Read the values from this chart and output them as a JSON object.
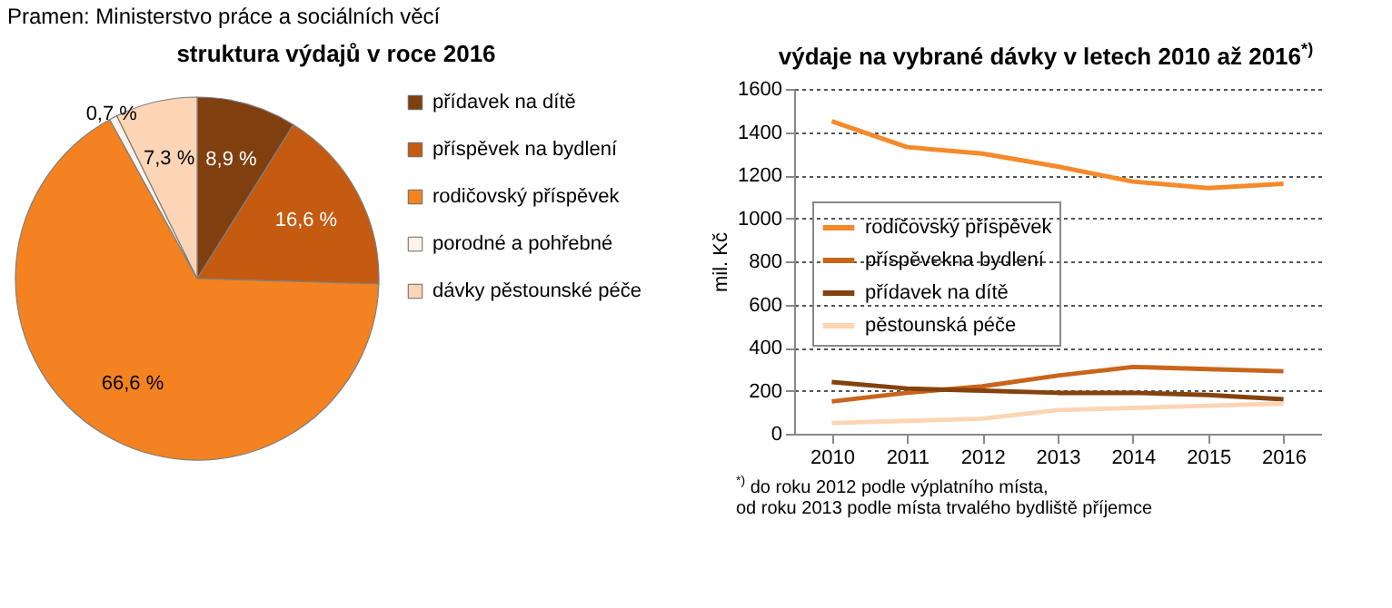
{
  "chart_data": [
    {
      "type": "pie",
      "title": "struktura výdajů v roce 2016",
      "annotations": [
        "Pramen: Ministerstvo práce a sociálních věcí"
      ],
      "categories": [
        "přídavek na dítě",
        "příspěvek na bydlení",
        "rodičovský příspěvek",
        "porodné a pohřebné",
        "dávky pěstounské péče"
      ],
      "values": [
        8.9,
        16.6,
        66.6,
        0.7,
        7.3
      ],
      "value_labels": [
        "8,9 %",
        "16,6 %",
        "66,6 %",
        "0,7 %",
        "7,3 %"
      ],
      "colors": [
        "#7f3f0f",
        "#c55a11",
        "#f58220",
        "#fdf3ea",
        "#fbd5b5"
      ],
      "legend": "right"
    },
    {
      "type": "line",
      "title": "výdaje na vybrané dávky v letech 2010 až 2016$^{*)}$",
      "ylabel": "mil. Kč",
      "annotations": [
        "$^{*)}$ do roku 2012 podle výplatního místa,\nod roku 2013 podle místa trvalého bydliště příjemce"
      ],
      "categories": [
        "2010",
        "2011",
        "2012",
        "2013",
        "2014",
        "2015",
        "2016"
      ],
      "series": [
        {
          "name": "rodičovský příspěvek",
          "color": "#f58a2a",
          "values": [
            1450,
            1330,
            1300,
            1240,
            1170,
            1140,
            1160
          ]
        },
        {
          "name": "příspěvekna bydlení",
          "color": "#c8651b",
          "values": [
            150,
            190,
            220,
            270,
            310,
            300,
            290
          ]
        },
        {
          "name": "přídavek na dítě",
          "color": "#84420f",
          "values": [
            240,
            210,
            200,
            190,
            190,
            180,
            160
          ]
        },
        {
          "name": "pěstounská péče",
          "color": "#fcd5b4",
          "values": [
            50,
            60,
            70,
            110,
            120,
            130,
            140
          ]
        }
      ],
      "ylim": [
        0,
        1600
      ],
      "yticks": [
        0,
        200,
        400,
        600,
        800,
        1000,
        1200,
        1400,
        1600
      ],
      "grid": "y",
      "legend": "left",
      "line_style": "solid"
    }
  ]
}
